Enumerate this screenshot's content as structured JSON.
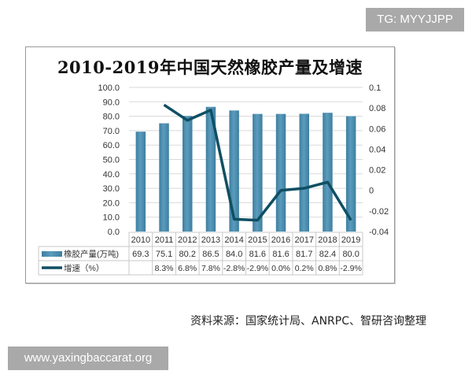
{
  "watermark_top": "TG: MYYJJPP",
  "watermark_bottom": "www.yaxingbaccarat.org",
  "source_note": "资料来源：国家统计局、ANRPC、智研咨询整理",
  "colors": {
    "bar": "#5b9bbd",
    "bar_dark": "#3e7f9f",
    "line": "#0f4f63",
    "grid": "#d9d9d9",
    "frame": "#9a9a9a"
  },
  "chart_data": {
    "type": "bar",
    "title": "2010-2019年中国天然橡胶产量及增速",
    "categories": [
      "2010",
      "2011",
      "2012",
      "2013",
      "2014",
      "2015",
      "2016",
      "2017",
      "2018",
      "2019"
    ],
    "series": [
      {
        "name": "橡胶产量(万吨)",
        "type": "bar",
        "axis": "left",
        "values": [
          69.3,
          75.1,
          80.2,
          86.5,
          84.0,
          81.6,
          81.6,
          81.7,
          82.4,
          80.0
        ]
      },
      {
        "name": "增速（%）",
        "type": "line",
        "axis": "right",
        "values": [
          null,
          0.083,
          0.068,
          0.078,
          -0.028,
          -0.029,
          0.0,
          0.002,
          0.008,
          -0.029
        ]
      }
    ],
    "table": {
      "bar_row": [
        "69.3",
        "75.1",
        "80.2",
        "86.5",
        "84.0",
        "81.6",
        "81.6",
        "81.7",
        "82.4",
        "80.0"
      ],
      "line_row": [
        "",
        "8.3%",
        "6.8%",
        "7.8%",
        "-2.8%",
        "-2.9%",
        "0.0%",
        "0.2%",
        "0.8%",
        "-2.9%"
      ]
    },
    "left_axis": {
      "ticks": [
        "0.0",
        "10.0",
        "20.0",
        "30.0",
        "40.0",
        "50.0",
        "60.0",
        "70.0",
        "80.0",
        "90.0",
        "100.0"
      ],
      "ylim": [
        0,
        100
      ]
    },
    "right_axis": {
      "ticks": [
        "-0.04",
        "-0.02",
        "0",
        "0.02",
        "0.04",
        "0.06",
        "0.08",
        "0.1"
      ],
      "ylim": [
        -0.04,
        0.1
      ]
    },
    "xlabel": "",
    "ylabel": "",
    "grid": true,
    "legend_position": "data-table"
  }
}
